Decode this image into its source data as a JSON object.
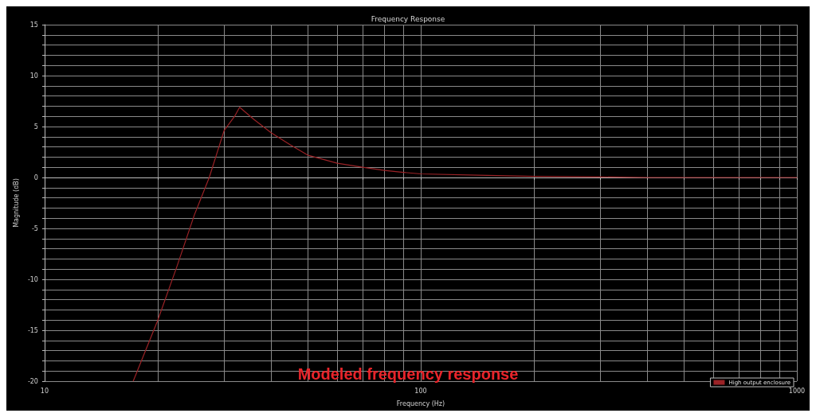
{
  "chart_data": {
    "type": "line",
    "title": "Frequency Response",
    "xlabel": "Frequency (Hz)",
    "ylabel": "Magnitude (dB)",
    "annotations": [
      "Modeled frequency response"
    ],
    "log": "x",
    "xlim": [
      10,
      1000
    ],
    "ylim": [
      -20,
      15
    ],
    "xticks": [
      10,
      {
        "value": 20,
        "label": null
      },
      {
        "value": 30,
        "label": null
      },
      {
        "value": 40,
        "label": null
      },
      {
        "value": 50,
        "label": null
      },
      {
        "value": 60,
        "label": null
      },
      {
        "value": 70,
        "label": null
      },
      {
        "value": 80,
        "label": null
      },
      {
        "value": 90,
        "label": null
      },
      100,
      {
        "value": 200,
        "label": null
      },
      {
        "value": 300,
        "label": null
      },
      {
        "value": 400,
        "label": null
      },
      {
        "value": 500,
        "label": null
      },
      {
        "value": 600,
        "label": null
      },
      {
        "value": 700,
        "label": null
      },
      {
        "value": 800,
        "label": null
      },
      {
        "value": 900,
        "label": null
      },
      1000
    ],
    "yticks": [
      -20,
      {
        "value": -19,
        "label": null
      },
      {
        "value": -18,
        "label": null
      },
      {
        "value": -17,
        "label": null
      },
      {
        "value": -16,
        "label": null
      },
      -15,
      {
        "value": -14,
        "label": null
      },
      {
        "value": -13,
        "label": null
      },
      {
        "value": -12,
        "label": null
      },
      {
        "value": -11,
        "label": null
      },
      -10,
      {
        "value": -9,
        "label": null
      },
      {
        "value": -8,
        "label": null
      },
      {
        "value": -7,
        "label": null
      },
      {
        "value": -6,
        "label": null
      },
      -5,
      {
        "value": -4,
        "label": null
      },
      {
        "value": -3,
        "label": null
      },
      {
        "value": -2,
        "label": null
      },
      {
        "value": -1,
        "label": null
      },
      0,
      {
        "value": 1,
        "label": null
      },
      {
        "value": 2,
        "label": null
      },
      {
        "value": 3,
        "label": null
      },
      {
        "value": 4,
        "label": null
      },
      5,
      {
        "value": 6,
        "label": null
      },
      {
        "value": 7,
        "label": null
      },
      {
        "value": 8,
        "label": null
      },
      {
        "value": 9,
        "label": null
      },
      10,
      {
        "value": 11,
        "label": null
      },
      {
        "value": 12,
        "label": null
      },
      {
        "value": 13,
        "label": null
      },
      {
        "value": 14,
        "label": null
      },
      15
    ],
    "grid": true,
    "legend": "bottom right",
    "marker": "none",
    "line_style": "solid",
    "series": [
      {
        "name": "High output enclosure",
        "color": "#9b2226",
        "x": [
          17.2,
          20,
          22.5,
          25,
          27.4,
          30,
          32,
          33,
          36,
          40,
          45,
          50,
          60,
          70,
          80,
          90,
          100,
          150,
          200,
          300,
          400,
          500,
          700,
          1000
        ],
        "values": [
          -20,
          -14,
          -8.7,
          -3.7,
          0,
          4.6,
          6,
          6.9,
          5.7,
          4.4,
          3.2,
          2.2,
          1.4,
          1,
          0.7,
          0.5,
          0.35,
          0.2,
          0.1,
          0.05,
          0,
          0,
          0,
          0
        ]
      }
    ]
  }
}
